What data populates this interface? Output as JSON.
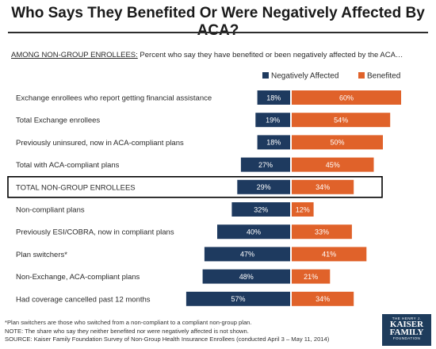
{
  "colors": {
    "negative": "#1e3a5f",
    "benefited": "#e0622a",
    "highlight_border": "#000000"
  },
  "chart_data": {
    "type": "bar",
    "orientation": "horizontal-diverging",
    "title": "Who Says They Benefited Or Were Negatively Affected By ACA?",
    "subtitle_lead": "AMONG NON-GROUP ENROLLEES:",
    "subtitle_rest": " Percent who say they have benefited or been negatively affected by the ACA…",
    "categories": [
      "Exchange enrollees who report getting financial  assistance",
      "Total Exchange enrollees",
      "Previously uninsured, now in ACA-compliant plans",
      "Total with ACA-compliant plans",
      "TOTAL NON-GROUP ENROLLEES",
      "Non-compliant plans",
      "Previously ESI/COBRA, now in compliant  plans",
      "Plan switchers*",
      "Non-Exchange, ACA-compliant plans",
      "Had coverage cancelled past 12 months"
    ],
    "highlighted_category": "TOTAL NON-GROUP ENROLLEES",
    "series": [
      {
        "name": "Negatively Affected",
        "values": [
          18,
          19,
          18,
          27,
          29,
          32,
          40,
          47,
          48,
          57
        ],
        "labels": [
          "18%",
          "19%",
          "18%",
          "27%",
          "29%",
          "32%",
          "40%",
          "47%",
          "48%",
          "57%"
        ]
      },
      {
        "name": "Benefited",
        "values": [
          60,
          54,
          50,
          45,
          34,
          12,
          33,
          41,
          21,
          34
        ],
        "labels": [
          "60%",
          "54%",
          "50%",
          "45%",
          "34%",
          "12%",
          "33%",
          "41%",
          "21%",
          "34%"
        ]
      }
    ],
    "legend_position": "top-right",
    "grid": false
  },
  "notes": [
    "*Plan switchers are those who switched from a non-compliant to a compliant non-group plan.",
    "NOTE: The share who say they neither benefited nor were negatively affected is not shown.",
    "SOURCE: Kaiser Family Foundation Survey of Non-Group Health Insurance Enrollees  (conducted April 3 – May 11, 2014)"
  ],
  "logo": {
    "line1": "THE HENRY J.",
    "line2a": "KAISER",
    "line2b": "FAMILY",
    "line3": "FOUNDATION"
  }
}
